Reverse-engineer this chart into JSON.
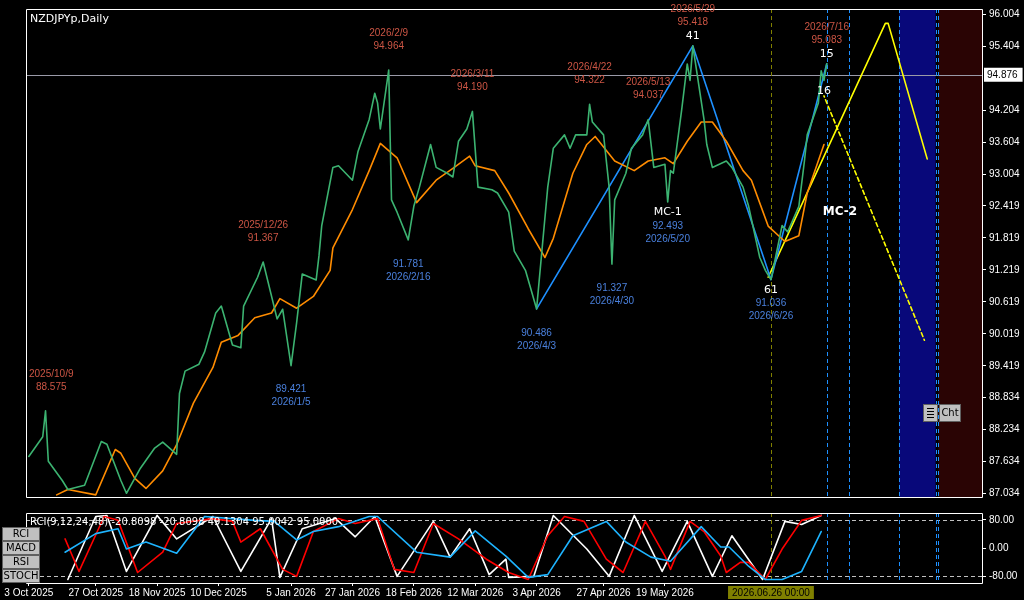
{
  "chart_data": [
    {
      "type": "line",
      "title": "NZDJPYp,Daily",
      "marker": "none",
      "tick_labels": "y",
      "xlim": [
        "2025-10-02",
        "2026-09-10"
      ],
      "ylim": [
        86.96,
        96.11
      ],
      "yticks": [
        96.004,
        95.404,
        94.204,
        93.604,
        93.004,
        92.419,
        91.819,
        91.219,
        90.619,
        90.019,
        89.419,
        88.834,
        88.234,
        87.634,
        87.034
      ],
      "series": [
        {
          "type": "line",
          "color": "#3cb371",
          "x": [
            "2025-10-03",
            "2025-10-08",
            "2025-10-09",
            "2025-10-10",
            "2025-10-15",
            "2025-10-17",
            "2025-10-23",
            "2025-10-29",
            "2025-10-31",
            "2025-11-05",
            "2025-11-07",
            "2025-11-12",
            "2025-11-17",
            "2025-11-20",
            "2025-11-25",
            "2025-11-26",
            "2025-11-28",
            "2025-12-03",
            "2025-12-05",
            "2025-12-09",
            "2025-12-11",
            "2025-12-15",
            "2025-12-18",
            "2025-12-19",
            "2025-12-24",
            "2025-12-26",
            "2025-12-31",
            "2026-01-02",
            "2026-01-05",
            "2026-01-07",
            "2026-01-09",
            "2026-01-14",
            "2026-01-15",
            "2026-01-16",
            "2026-01-20",
            "2026-01-22",
            "2026-01-27",
            "2026-01-29",
            "2026-02-02",
            "2026-02-04",
            "2026-02-05",
            "2026-02-06",
            "2026-02-09",
            "2026-02-10",
            "2026-02-12",
            "2026-02-16",
            "2026-02-18",
            "2026-02-20",
            "2026-02-24",
            "2026-02-26",
            "2026-03-02",
            "2026-03-04",
            "2026-03-06",
            "2026-03-09",
            "2026-03-11",
            "2026-03-13",
            "2026-03-18",
            "2026-03-20",
            "2026-03-24",
            "2026-03-26",
            "2026-03-30",
            "2026-04-01",
            "2026-04-03",
            "2026-04-07",
            "2026-04-09",
            "2026-04-13",
            "2026-04-15",
            "2026-04-17",
            "2026-04-21",
            "2026-04-22",
            "2026-04-23",
            "2026-04-27",
            "2026-04-29",
            "2026-04-30",
            "2026-05-01",
            "2026-05-05",
            "2026-05-07",
            "2026-05-11",
            "2026-05-13",
            "2026-05-15",
            "2026-05-19",
            "2026-05-20",
            "2026-05-21",
            "2026-05-22",
            "2026-05-25",
            "2026-05-27",
            "2026-05-28",
            "2026-05-29",
            "2026-06-02",
            "2026-06-03",
            "2026-06-05",
            "2026-06-10",
            "2026-06-12",
            "2026-06-16",
            "2026-06-18",
            "2026-06-22",
            "2026-06-24",
            "2026-06-26",
            "2026-06-30",
            "2026-07-02",
            "2026-07-06",
            "2026-07-08",
            "2026-07-09",
            "2026-07-13",
            "2026-07-14",
            "2026-07-15",
            "2026-07-16"
          ],
          "values": [
            87.72,
            88.09,
            88.575,
            87.63,
            87.27,
            87.1,
            87.18,
            88.0,
            87.95,
            87.27,
            87.03,
            87.5,
            87.87,
            87.99,
            87.76,
            88.9,
            89.32,
            89.45,
            89.68,
            90.41,
            90.54,
            89.81,
            89.76,
            90.54,
            91.08,
            91.367,
            90.3,
            90.48,
            89.421,
            90.23,
            91.14,
            91.03,
            91.48,
            92.05,
            93.14,
            93.17,
            92.9,
            93.44,
            94.04,
            94.53,
            94.35,
            93.86,
            94.964,
            92.53,
            92.3,
            91.781,
            92.41,
            92.77,
            93.57,
            93.14,
            93.03,
            92.96,
            93.63,
            93.86,
            94.19,
            92.77,
            92.72,
            92.66,
            92.3,
            91.57,
            91.21,
            90.85,
            90.486,
            92.77,
            93.5,
            93.75,
            93.5,
            93.75,
            93.75,
            94.322,
            93.99,
            93.75,
            92.77,
            91.327,
            92.53,
            93.03,
            93.5,
            93.75,
            94.037,
            93.14,
            93.2,
            92.493,
            93.08,
            93.03,
            94.22,
            95.08,
            94.77,
            95.418,
            94.04,
            93.57,
            93.14,
            93.26,
            93.14,
            92.77,
            92.41,
            91.45,
            91.21,
            91.036,
            92.05,
            91.93,
            92.41,
            93.26,
            93.75,
            94.35,
            94.95,
            94.77,
            95.083
          ]
        },
        {
          "type": "line",
          "color": "#ff8c00",
          "x": [
            "2025-10-13",
            "2025-10-17",
            "2025-10-27",
            "2025-11-03",
            "2025-11-05",
            "2025-11-10",
            "2025-11-14",
            "2025-11-20",
            "2025-11-25",
            "2025-12-01",
            "2025-12-08",
            "2025-12-11",
            "2025-12-17",
            "2025-12-23",
            "2025-12-29",
            "2026-01-01",
            "2026-01-07",
            "2026-01-13",
            "2026-01-19",
            "2026-01-20",
            "2026-01-27",
            "2026-02-02",
            "2026-02-06",
            "2026-02-12",
            "2026-02-19",
            "2026-02-26",
            "2026-03-04",
            "2026-03-10",
            "2026-03-12",
            "2026-03-19",
            "2026-03-24",
            "2026-03-31",
            "2026-04-06",
            "2026-04-09",
            "2026-04-16",
            "2026-04-21",
            "2026-04-24",
            "2026-05-01",
            "2026-05-08",
            "2026-05-13",
            "2026-05-19",
            "2026-05-22",
            "2026-05-27",
            "2026-06-01",
            "2026-06-05",
            "2026-06-10",
            "2026-06-16",
            "2026-06-19",
            "2026-06-25",
            "2026-07-01",
            "2026-07-06",
            "2026-07-09",
            "2026-07-15"
          ],
          "values": [
            87.0,
            87.1,
            87.0,
            87.85,
            87.78,
            87.31,
            87.12,
            87.45,
            87.94,
            88.72,
            89.39,
            89.86,
            89.99,
            90.32,
            90.41,
            90.68,
            90.5,
            90.72,
            91.21,
            91.63,
            92.35,
            93.08,
            93.59,
            93.32,
            92.48,
            92.9,
            93.12,
            93.35,
            93.17,
            93.08,
            92.66,
            91.99,
            91.45,
            91.81,
            93.03,
            93.57,
            93.72,
            93.26,
            93.08,
            93.26,
            93.32,
            93.21,
            93.63,
            93.99,
            93.99,
            93.63,
            93.08,
            92.9,
            92.04,
            91.75,
            91.86,
            92.66,
            93.57
          ]
        },
        {
          "type": "line",
          "color": "#1e90ff",
          "x": [
            "2026-04-03",
            "2026-05-29",
            "2026-06-26",
            "2026-07-16"
          ],
          "values": [
            90.486,
            95.418,
            91.036,
            95.083
          ]
        },
        {
          "type": "line",
          "color": "#ffff00",
          "x": [
            "2026-06-25",
            "2026-08-06",
            "2026-08-07",
            "2026-08-21"
          ],
          "values": [
            91.08,
            95.84,
            95.84,
            93.3
          ]
        },
        {
          "type": "line",
          "color": "#ffff00",
          "line_style": "dashed",
          "x": [
            "2026-07-15",
            "2026-08-20"
          ],
          "values": [
            94.48,
            89.9
          ]
        }
      ],
      "ref_lines": [
        {
          "axis": "y",
          "value": 94.876,
          "label": "94.876",
          "color": "#9a9aa8"
        },
        {
          "axis": "x",
          "value": "2026-06-26",
          "color": "#808000",
          "line_style": "dashed"
        },
        {
          "axis": "x",
          "value": "2026-07-16",
          "color": "#1e90ff",
          "line_style": "dashed"
        },
        {
          "axis": "x",
          "value": "2026-07-24",
          "color": "#1e90ff",
          "line_style": "dashed"
        },
        {
          "axis": "x",
          "value": "2026-08-11",
          "color": "#1e90ff",
          "line_style": "dashed"
        },
        {
          "axis": "x",
          "value": "2026-08-24",
          "color": "#1e90ff",
          "line_style": "dashed"
        },
        {
          "axis": "x",
          "value": "2026-08-25",
          "color": "#1e90ff",
          "line_style": "dashed"
        }
      ],
      "bands": [
        {
          "axis": "x",
          "from": "2026-08-11",
          "to": "2026-08-24",
          "color": "#08087a"
        },
        {
          "axis": "x",
          "from": "2026-08-25",
          "to": "2026-09-10",
          "color": "#2a0404"
        }
      ],
      "annotations": [
        {
          "text": "2025/10/9\n88.575",
          "x": "2025-10-09",
          "y": 88.575
        },
        {
          "text": "2025/12/26\n91.367",
          "x": "2025-12-26",
          "y": 91.367
        },
        {
          "text": "2026/2/9\n94.964",
          "x": "2026-02-09",
          "y": 94.964
        },
        {
          "text": "2026/3/11\n94.190",
          "x": "2026-03-11",
          "y": 94.19
        },
        {
          "text": "2026/4/22\n94.322",
          "x": "2026-04-22",
          "y": 94.322
        },
        {
          "text": "2026/5/13\n94.037",
          "x": "2026-05-13",
          "y": 94.037
        },
        {
          "text": "2026/5/29\n95.418",
          "x": "2026-05-29",
          "y": 95.418
        },
        {
          "text": "2026/7/16\n95.083",
          "x": "2026-07-16",
          "y": 95.083
        },
        {
          "text": "89.421\n2026/1/5",
          "x": "2026-01-05",
          "y": 89.421
        },
        {
          "text": "91.781\n2026/2/16",
          "x": "2026-02-16",
          "y": 91.781
        },
        {
          "text": "90.486\n2026/4/3",
          "x": "2026-04-03",
          "y": 90.486
        },
        {
          "text": "91.327\n2026/4/30",
          "x": "2026-04-30",
          "y": 91.327
        },
        {
          "text": "92.493\n2026/5/20",
          "x": "2026-05-20",
          "y": 92.493
        },
        {
          "text": "91.036\n2026/6/26",
          "x": "2026-06-26",
          "y": 91.036
        },
        {
          "text": "41",
          "x": "2026-05-29",
          "y": 95.418
        },
        {
          "text": "61",
          "x": "2026-06-26",
          "y": 91.036
        },
        {
          "text": "15",
          "x": "2026-07-16",
          "y": 95.083
        },
        {
          "text": "16",
          "x": "2026-07-15",
          "y": 94.77
        },
        {
          "text": "MC-1",
          "x": "2026-05-20",
          "y": 92.493
        },
        "MC-2",
        "Cht"
      ]
    },
    {
      "type": "line",
      "title": "RCI(9,12,24,48) -20.8098 -20.8098 49.1304 95.0042 95.0000",
      "marker": "none",
      "xlim": [
        "2025-10-02",
        "2026-09-10"
      ],
      "ylim": [
        -100,
        100
      ],
      "xticks": [
        {
          "value": "2025-10-03",
          "label": "3 Oct 2025"
        },
        {
          "value": "2025-10-27",
          "label": "27 Oct 2025"
        },
        {
          "value": "2025-11-18",
          "label": "18 Nov 2025"
        },
        {
          "value": "2025-12-10",
          "label": "10 Dec 2025"
        },
        {
          "value": "2026-01-05",
          "label": "5 Jan 2026"
        },
        {
          "value": "2026-01-27",
          "label": "27 Jan 2026"
        },
        {
          "value": "2026-02-18",
          "label": "18 Feb 2026"
        },
        {
          "value": "2026-03-12",
          "label": "12 Mar 2026"
        },
        {
          "value": "2026-04-03",
          "label": "3 Apr 2026"
        },
        {
          "value": "2026-04-27",
          "label": "27 Apr 2026"
        },
        {
          "value": "2026-05-19",
          "label": "19 May 2026"
        }
      ],
      "yticks": [
        {
          "value": 80,
          "label": "80.00"
        },
        {
          "value": 0,
          "label": "0.00"
        },
        {
          "value": -80,
          "label": "-80.00"
        }
      ],
      "series": [
        {
          "type": "line",
          "color": "#1eb4ff",
          "x": [
            "2025-10-16",
            "2025-10-27",
            "2025-11-04",
            "2025-11-07",
            "2025-11-14",
            "2025-11-25",
            "2025-12-05",
            "2025-12-23",
            "2025-12-30",
            "2026-01-07",
            "2026-01-13",
            "2026-01-22",
            "2026-02-02",
            "2026-02-05",
            "2026-02-19",
            "2026-03-03",
            "2026-03-12",
            "2026-03-23",
            "2026-03-31",
            "2026-04-07",
            "2026-04-16",
            "2026-04-28",
            "2026-05-05",
            "2026-05-14",
            "2026-05-21",
            "2026-06-01",
            "2026-06-08",
            "2026-06-11",
            "2026-06-18",
            "2026-06-24",
            "2026-06-30",
            "2026-07-07",
            "2026-07-14"
          ],
          "values": [
            -12,
            41,
            55,
            -3,
            17,
            -15,
            90,
            79,
            76,
            23,
            47,
            61,
            90,
            90,
            -12,
            -26,
            49,
            -23,
            -84,
            -76,
            35,
            76,
            17,
            -26,
            -38,
            61,
            3,
            3,
            -52,
            -90,
            -90,
            -67,
            47
          ]
        },
        {
          "type": "line",
          "color": "#ff0000",
          "x": [
            "2025-10-16",
            "2025-10-21",
            "2025-10-28",
            "2025-10-30",
            "2025-11-04",
            "2025-11-11",
            "2025-11-20",
            "2025-11-25",
            "2025-12-08",
            "2025-12-15",
            "2025-12-18",
            "2025-12-25",
            "2026-01-02",
            "2026-01-07",
            "2026-01-13",
            "2026-01-22",
            "2026-01-28",
            "2026-02-05",
            "2026-02-11",
            "2026-02-18",
            "2026-02-25",
            "2026-03-06",
            "2026-03-16",
            "2026-03-24",
            "2026-03-31",
            "2026-04-07",
            "2026-04-13",
            "2026-04-20",
            "2026-04-28",
            "2026-05-04",
            "2026-05-12",
            "2026-05-19",
            "2026-05-21",
            "2026-05-28",
            "2026-06-02",
            "2026-06-08",
            "2026-06-10",
            "2026-06-15",
            "2026-06-18",
            "2026-06-24",
            "2026-06-30",
            "2026-07-07",
            "2026-07-14"
          ],
          "values": [
            26,
            -67,
            55,
            90,
            79,
            -70,
            -12,
            70,
            84,
            76,
            17,
            55,
            -61,
            -81,
            47,
            84,
            70,
            84,
            -61,
            -70,
            70,
            26,
            -32,
            -70,
            -90,
            35,
            90,
            76,
            -32,
            -70,
            76,
            -23,
            -61,
            76,
            47,
            -23,
            -70,
            -41,
            -41,
            -90,
            -3,
            79,
            93
          ]
        },
        {
          "type": "line",
          "color": "#ffffff",
          "x": [
            "2025-10-17",
            "2025-10-27",
            "2025-10-31",
            "2025-11-07",
            "2025-11-18",
            "2025-11-25",
            "2025-12-08",
            "2025-12-18",
            "2025-12-29",
            "2026-01-01",
            "2026-01-09",
            "2026-01-21",
            "2026-01-28",
            "2026-02-04",
            "2026-02-12",
            "2026-02-25",
            "2026-03-03",
            "2026-03-10",
            "2026-03-17",
            "2026-03-23",
            "2026-03-24",
            "2026-04-02",
            "2026-04-09",
            "2026-04-21",
            "2026-04-29",
            "2026-05-08",
            "2026-05-18",
            "2026-05-27",
            "2026-06-05",
            "2026-06-12",
            "2026-06-23",
            "2026-07-01",
            "2026-07-07",
            "2026-07-14"
          ],
          "values": [
            -90,
            90,
            93,
            -67,
            93,
            26,
            90,
            -67,
            84,
            -84,
            55,
            84,
            32,
            90,
            -81,
            76,
            -26,
            55,
            -76,
            -32,
            -84,
            -81,
            93,
            -3,
            -81,
            93,
            -67,
            76,
            -81,
            35,
            -90,
            76,
            67,
            93
          ]
        }
      ],
      "ref_lines": [
        {
          "axis": "y",
          "value": 80,
          "color": "#c0c0c0",
          "line_style": "dashed"
        },
        {
          "axis": "y",
          "value": -80,
          "color": "#c0c0c0",
          "line_style": "dashed"
        },
        {
          "axis": "x",
          "value": "2026-06-26",
          "label": "2026.06.26 00:00",
          "color": "#808000",
          "line_style": "dashed"
        },
        {
          "axis": "x",
          "value": "2026-07-16",
          "color": "#1e90ff",
          "line_style": "dashed"
        },
        {
          "axis": "x",
          "value": "2026-07-24",
          "color": "#1e90ff",
          "line_style": "dashed"
        },
        {
          "axis": "x",
          "value": "2026-08-11",
          "color": "#1e90ff",
          "line_style": "dashed"
        },
        {
          "axis": "x",
          "value": "2026-08-24",
          "color": "#1e90ff",
          "line_style": "dashed"
        },
        {
          "axis": "x",
          "value": "2026-08-25",
          "color": "#1e90ff",
          "line_style": "dashed"
        }
      ],
      "annotations": [
        "RCI",
        "MACD",
        "RSI",
        "STOCH"
      ]
    }
  ]
}
